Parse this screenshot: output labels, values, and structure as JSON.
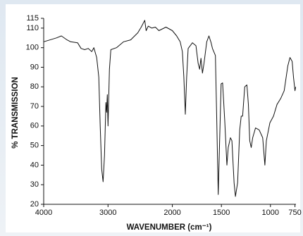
{
  "chart_data": {
    "type": "line",
    "x_label": "WAVENUMBER (cm⁻¹)",
    "y_label": "% TRANSMISSION",
    "xlim": [
      4000,
      740
    ],
    "x_scale_change_at": 2000,
    "xticks": [
      4000,
      3000,
      2000,
      1500,
      1000,
      750
    ],
    "ylim": [
      20,
      115
    ],
    "yticks": [
      20,
      30,
      40,
      50,
      60,
      70,
      80,
      90,
      100,
      110,
      115
    ],
    "grid": false,
    "series": [
      {
        "color": "#111111",
        "x": [
          4000,
          3802,
          3725,
          3637,
          3582,
          3473,
          3418,
          3363,
          3308,
          3253,
          3220,
          3176,
          3143,
          3121,
          3099,
          3077,
          3055,
          3033,
          3022,
          3011,
          3000,
          2978,
          2956,
          2868,
          2758,
          2648,
          2538,
          2484,
          2429,
          2407,
          2374,
          2319,
          2264,
          2209,
          2099,
          2000,
          1956,
          1920,
          1898,
          1883,
          1868,
          1854,
          1839,
          1795,
          1759,
          1737,
          1722,
          1708,
          1693,
          1678,
          1649,
          1627,
          1605,
          1591,
          1561,
          1547,
          1532,
          1518,
          1503,
          1488,
          1466,
          1444,
          1430,
          1408,
          1393,
          1371,
          1357,
          1335,
          1313,
          1298,
          1284,
          1262,
          1240,
          1225,
          1211,
          1196,
          1181,
          1152,
          1115,
          1079,
          1057,
          1042,
          1006,
          969,
          933,
          896,
          860,
          823,
          801,
          779,
          765,
          750,
          743
        ],
        "values": [
          103,
          105,
          106,
          104,
          103,
          102.5,
          99.6,
          99,
          99.6,
          98,
          100,
          95,
          85,
          60,
          38,
          31.5,
          45,
          72,
          67,
          76,
          60,
          89,
          99,
          100,
          103,
          104,
          107.6,
          110.5,
          114,
          108.7,
          111,
          110,
          110.5,
          108.7,
          110.5,
          108.7,
          106,
          103,
          98,
          85,
          66,
          85,
          99.6,
          102.5,
          101,
          92,
          89,
          94.6,
          87,
          91.7,
          103,
          106,
          102.5,
          99.6,
          96,
          63,
          25,
          52.5,
          81.5,
          82,
          63,
          40,
          49,
          54,
          52.5,
          31,
          24,
          31,
          58,
          65,
          65,
          80,
          81,
          71,
          52.5,
          49,
          54,
          59,
          58,
          54,
          40,
          52.5,
          61.6,
          65,
          71,
          74,
          78,
          90.6,
          95,
          93,
          85,
          78,
          80
        ]
      }
    ]
  }
}
